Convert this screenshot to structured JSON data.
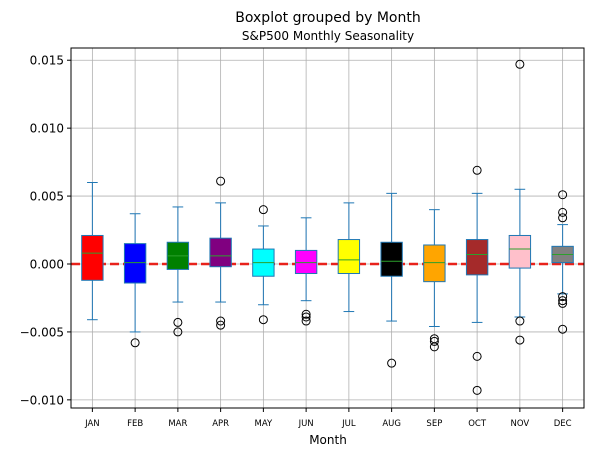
{
  "chart_data": {
    "type": "boxplot",
    "title": "Boxplot grouped by Month",
    "subtitle": "S&P500 Monthly Seasonality",
    "xlabel": "Month",
    "ylabel": "",
    "ylim": [
      -0.0106,
      0.0159
    ],
    "yticks": [
      -0.01,
      -0.005,
      0.0,
      0.005,
      0.01,
      0.015
    ],
    "ytick_labels": [
      "−0.010",
      "−0.005",
      "0.000",
      "0.005",
      "0.010",
      "0.015"
    ],
    "grid": true,
    "reference_line": {
      "y": 0.0,
      "color": "#e8221b",
      "style": "dashed"
    },
    "categories": [
      "JAN",
      "FEB",
      "MAR",
      "APR",
      "MAY",
      "JUN",
      "JUL",
      "AUG",
      "SEP",
      "OCT",
      "NOV",
      "DEC"
    ],
    "box_colors": [
      "#ff0000",
      "#0000ff",
      "#008000",
      "#800080",
      "#00ffff",
      "#ff00ff",
      "#ffff00",
      "#000000",
      "#ffa500",
      "#a52a2a",
      "#ffc0cb",
      "#808080"
    ],
    "whisker_color": "#1f77b4",
    "median_color": "#2ca02c",
    "boxes": [
      {
        "whislo": -0.0041,
        "q1": -0.0012,
        "med": 0.0008,
        "q3": 0.0021,
        "whishi": 0.006,
        "fliers": []
      },
      {
        "whislo": -0.005,
        "q1": -0.0014,
        "med": 0.0001,
        "q3": 0.0015,
        "whishi": 0.0037,
        "fliers": [
          -0.0058
        ]
      },
      {
        "whislo": -0.0028,
        "q1": -0.0004,
        "med": 0.0006,
        "q3": 0.0016,
        "whishi": 0.0042,
        "fliers": [
          -0.0043,
          -0.005
        ]
      },
      {
        "whislo": -0.0028,
        "q1": -0.0002,
        "med": 0.0006,
        "q3": 0.0019,
        "whishi": 0.0045,
        "fliers": [
          0.0061,
          -0.0042,
          -0.0045
        ]
      },
      {
        "whislo": -0.003,
        "q1": -0.0009,
        "med": 0.0001,
        "q3": 0.0011,
        "whishi": 0.0028,
        "fliers": [
          0.004,
          -0.0041
        ]
      },
      {
        "whislo": -0.0027,
        "q1": -0.0007,
        "med": 0.0001,
        "q3": 0.001,
        "whishi": 0.0034,
        "fliers": [
          -0.0037,
          -0.0039,
          -0.0042
        ]
      },
      {
        "whislo": -0.0035,
        "q1": -0.0007,
        "med": 0.0003,
        "q3": 0.0018,
        "whishi": 0.0045,
        "fliers": []
      },
      {
        "whislo": -0.0042,
        "q1": -0.0009,
        "med": 0.0002,
        "q3": 0.0016,
        "whishi": 0.0052,
        "fliers": [
          -0.0073
        ]
      },
      {
        "whislo": -0.0046,
        "q1": -0.0013,
        "med": 0.0001,
        "q3": 0.0014,
        "whishi": 0.004,
        "fliers": [
          -0.0055,
          -0.0057,
          -0.0061
        ]
      },
      {
        "whislo": -0.0043,
        "q1": -0.0008,
        "med": 0.0007,
        "q3": 0.0018,
        "whishi": 0.0052,
        "fliers": [
          0.0069,
          -0.0068,
          -0.0093
        ]
      },
      {
        "whislo": -0.0039,
        "q1": -0.0003,
        "med": 0.0011,
        "q3": 0.0021,
        "whishi": 0.0055,
        "fliers": [
          0.0147,
          -0.0042,
          -0.0056
        ]
      },
      {
        "whislo": -0.0022,
        "q1": 0.0001,
        "med": 0.0007,
        "q3": 0.0013,
        "whishi": 0.0029,
        "fliers": [
          0.0051,
          0.0038,
          0.0034,
          -0.0024,
          -0.0027,
          -0.0029,
          -0.0048
        ]
      }
    ]
  }
}
